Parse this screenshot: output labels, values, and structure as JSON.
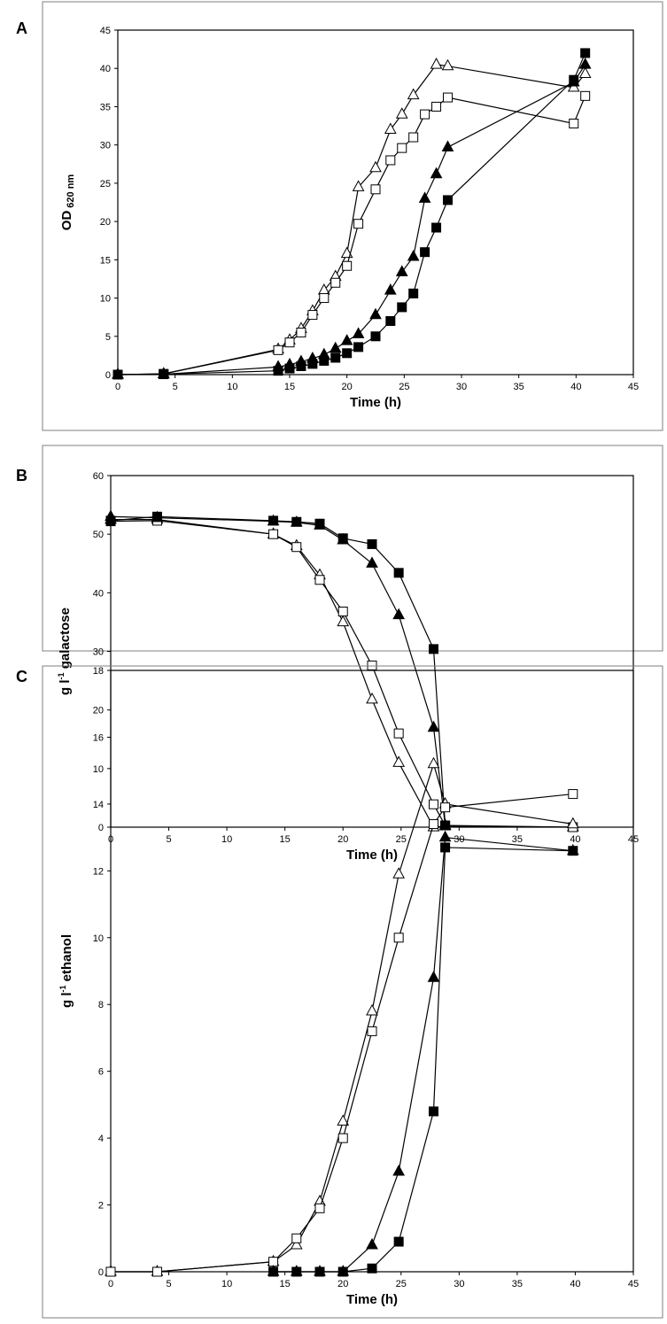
{
  "chart_data": [
    {
      "panel": "A",
      "type": "line",
      "xlabel": "Time (h)",
      "ylabel_main": "OD",
      "ylabel_sub": "620 nm",
      "xlim": [
        0,
        45
      ],
      "ylim": [
        0,
        45
      ],
      "xticks": [
        0,
        5,
        10,
        15,
        20,
        25,
        30,
        35,
        40,
        45
      ],
      "yticks": [
        0,
        5,
        10,
        15,
        20,
        25,
        30,
        35,
        40,
        45
      ],
      "series": [
        {
          "marker": "triangle-open",
          "x": [
            0,
            4,
            14,
            15,
            16,
            17,
            18,
            19,
            20,
            21,
            22.5,
            23.8,
            24.8,
            25.8,
            27.8,
            28.8,
            39.8,
            40.8
          ],
          "y": [
            0,
            0.1,
            3.3,
            4.5,
            6.0,
            8.3,
            11.0,
            12.8,
            15.8,
            24.5,
            27.0,
            32.0,
            34.0,
            36.5,
            40.5,
            40.3,
            37.5,
            39.3
          ]
        },
        {
          "marker": "square-open",
          "x": [
            0,
            4,
            14,
            15,
            16,
            17,
            18,
            19,
            20,
            21,
            22.5,
            23.8,
            24.8,
            25.8,
            26.8,
            27.8,
            28.8,
            39.8,
            40.8
          ],
          "y": [
            0,
            0.1,
            3.2,
            4.2,
            5.5,
            7.8,
            10.0,
            12.0,
            14.2,
            19.7,
            24.2,
            28.0,
            29.6,
            31.0,
            34.0,
            35.0,
            36.2,
            32.8,
            36.4
          ]
        },
        {
          "marker": "triangle-filled",
          "x": [
            0,
            4,
            14,
            15,
            16,
            17,
            18,
            19,
            20,
            21,
            22.5,
            23.8,
            24.8,
            25.8,
            26.8,
            27.8,
            28.8,
            39.8,
            40.8
          ],
          "y": [
            0,
            0.05,
            1.0,
            1.3,
            1.7,
            2.1,
            2.6,
            3.4,
            4.4,
            5.3,
            7.8,
            11.0,
            13.4,
            15.4,
            23.0,
            26.2,
            29.7,
            38.2,
            40.5
          ]
        },
        {
          "marker": "square-filled",
          "x": [
            0,
            4,
            14,
            15,
            16,
            17,
            18,
            19,
            20,
            21,
            22.5,
            23.8,
            24.8,
            25.8,
            26.8,
            27.8,
            28.8,
            39.8,
            40.8
          ],
          "y": [
            0,
            0.05,
            0.5,
            0.8,
            1.1,
            1.4,
            1.8,
            2.2,
            2.8,
            3.6,
            5.0,
            7.0,
            8.8,
            10.6,
            16.0,
            19.2,
            22.8,
            38.5,
            42.0
          ]
        }
      ]
    },
    {
      "panel": "B",
      "type": "line",
      "xlabel": "Time (h)",
      "ylabel_main": "g l",
      "ylabel_sup": "-1",
      "ylabel_rest": " galactose",
      "xlim": [
        0,
        45
      ],
      "ylim": [
        0,
        60
      ],
      "xticks": [
        0,
        5,
        10,
        15,
        20,
        25,
        30,
        35,
        40,
        45
      ],
      "yticks": [
        0,
        10,
        20,
        30,
        40,
        50,
        60
      ],
      "series": [
        {
          "marker": "triangle-open",
          "x": [
            0,
            4,
            14,
            16,
            18,
            20,
            22.5,
            24.8,
            27.8,
            28.8,
            39.8
          ],
          "y": [
            52.5,
            52.5,
            50.0,
            48.0,
            43.0,
            35.0,
            21.8,
            11.0,
            0,
            0.2,
            0
          ]
        },
        {
          "marker": "square-open",
          "x": [
            0,
            4,
            14,
            16,
            18,
            20,
            22.5,
            24.8,
            27.8,
            28.8,
            39.8
          ],
          "y": [
            52.2,
            52.3,
            50.0,
            47.8,
            42.2,
            36.8,
            27.6,
            16.0,
            3.9,
            0.3,
            0
          ]
        },
        {
          "marker": "triangle-filled",
          "x": [
            0,
            4,
            14,
            16,
            18,
            20,
            22.5,
            24.8,
            27.8,
            28.8
          ],
          "y": [
            53.0,
            52.8,
            52.2,
            52.0,
            51.5,
            49.0,
            45.0,
            36.2,
            17.0,
            0.3
          ]
        },
        {
          "marker": "square-filled",
          "x": [
            0,
            4,
            14,
            16,
            18,
            20,
            22.5,
            24.8,
            27.8,
            28.8
          ],
          "y": [
            52.3,
            53.0,
            52.3,
            52.1,
            51.8,
            49.3,
            48.3,
            43.4,
            30.4,
            0.3
          ]
        }
      ]
    },
    {
      "panel": "C",
      "type": "line",
      "xlabel": "Time (h)",
      "ylabel_main": "g l",
      "ylabel_sup": "-1",
      "ylabel_rest": " ethanol",
      "xlim": [
        0,
        45
      ],
      "ylim": [
        0,
        18
      ],
      "xticks": [
        0,
        5,
        10,
        15,
        20,
        25,
        30,
        35,
        40,
        45
      ],
      "yticks": [
        0,
        2,
        4,
        6,
        8,
        10,
        12,
        14,
        16,
        18
      ],
      "series": [
        {
          "marker": "triangle-open",
          "x": [
            0,
            4,
            14,
            16,
            18,
            20,
            22.5,
            24.8,
            27.8,
            28.8,
            39.8
          ],
          "y": [
            0,
            0,
            0.3,
            0.8,
            2.1,
            4.5,
            7.8,
            11.9,
            15.2,
            14.0,
            13.4
          ]
        },
        {
          "marker": "square-open",
          "x": [
            0,
            4,
            14,
            16,
            18,
            20,
            22.5,
            24.8,
            27.8,
            28.8,
            39.8
          ],
          "y": [
            0,
            0,
            0.3,
            1.0,
            1.9,
            4.0,
            7.2,
            10.0,
            13.4,
            13.9,
            14.3
          ]
        },
        {
          "marker": "triangle-filled",
          "x": [
            14,
            16,
            18,
            20,
            22.5,
            24.8,
            27.8,
            28.8,
            39.8
          ],
          "y": [
            0,
            0,
            0,
            0,
            0.8,
            3.0,
            8.8,
            13.0,
            12.6
          ]
        },
        {
          "marker": "square-filled",
          "x": [
            14,
            16,
            18,
            20,
            22.5,
            24.8,
            27.8,
            28.8,
            39.8
          ],
          "y": [
            0,
            0,
            0,
            0,
            0.1,
            0.9,
            4.8,
            12.7,
            12.6
          ]
        }
      ]
    }
  ]
}
